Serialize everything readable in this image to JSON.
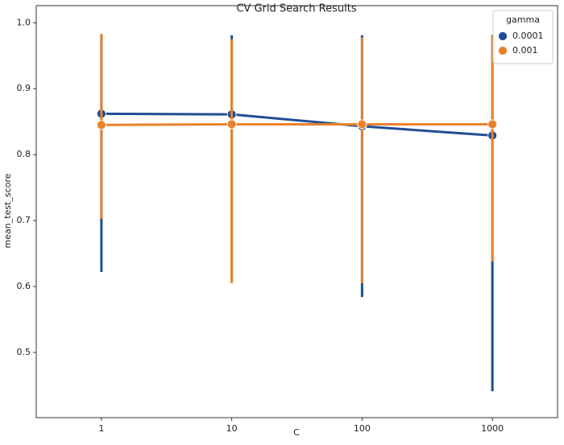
{
  "chart_data": {
    "type": "pointplot",
    "title": "CV Grid Search Results",
    "x_label": "C",
    "y_label": "mean_test_score",
    "categories": [
      "1",
      "10",
      "100",
      "1000"
    ],
    "legend_title": "gamma",
    "legend_position": "upper right",
    "series": [
      {
        "name": "0.0001",
        "color": "#1f4e96",
        "values": [
          0.862,
          0.861,
          0.843,
          0.829
        ],
        "lower": [
          0.622,
          0.608,
          0.584,
          0.441
        ],
        "upper": [
          0.982,
          0.981,
          0.981,
          0.982
        ]
      },
      {
        "name": "0.001",
        "color": "#e8832b",
        "values": [
          0.845,
          0.846,
          0.846,
          0.846
        ],
        "lower": [
          0.703,
          0.605,
          0.605,
          0.638
        ],
        "upper": [
          0.983,
          0.975,
          0.978,
          0.982
        ]
      }
    ],
    "ylim": [
      0.401,
      1.026
    ],
    "yticks": [
      0.5,
      0.6,
      0.7,
      0.8,
      0.9,
      {
        "value": 1.0,
        "label": "1.0"
      }
    ]
  }
}
